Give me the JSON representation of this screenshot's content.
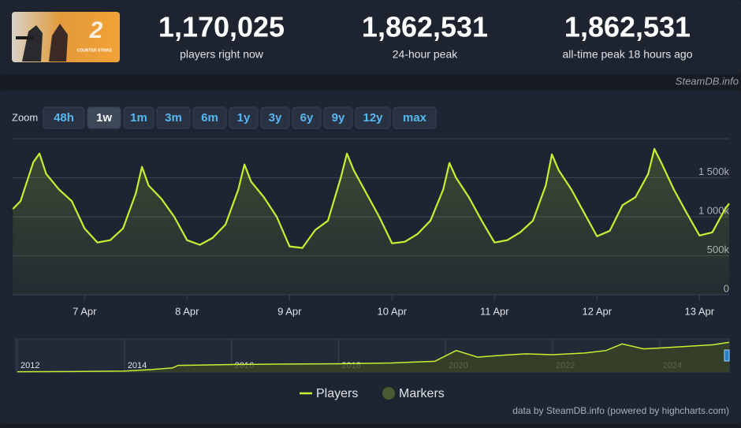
{
  "header": {
    "logo": {
      "number": "2",
      "text": "COUNTER STRIKE"
    },
    "stats": [
      {
        "value": "1,170,025",
        "label": "players right now"
      },
      {
        "value": "1,862,531",
        "label": "24-hour peak"
      },
      {
        "value": "1,862,531",
        "label": "all-time peak 18 hours ago"
      }
    ],
    "source": "SteamDB.info"
  },
  "zoom": {
    "label": "Zoom",
    "buttons": [
      "48h",
      "1w",
      "1m",
      "3m",
      "6m",
      "1y",
      "3y",
      "6y",
      "9y",
      "12y",
      "max"
    ],
    "active": "1w"
  },
  "chart_data": [
    {
      "type": "line",
      "x": [
        6.3,
        6.375,
        6.5,
        6.56,
        6.625,
        6.75,
        6.875,
        7.0,
        7.125,
        7.25,
        7.375,
        7.5,
        7.56,
        7.625,
        7.75,
        7.875,
        8.0,
        8.125,
        8.25,
        8.375,
        8.5,
        8.56,
        8.625,
        8.75,
        8.875,
        9.0,
        9.125,
        9.25,
        9.375,
        9.5,
        9.56,
        9.625,
        9.75,
        9.875,
        10.0,
        10.125,
        10.25,
        10.375,
        10.5,
        10.56,
        10.625,
        10.75,
        10.875,
        11.0,
        11.125,
        11.25,
        11.375,
        11.5,
        11.56,
        11.625,
        11.75,
        11.875,
        12.0,
        12.125,
        12.25,
        12.375,
        12.5,
        12.56,
        12.625,
        12.75,
        12.875,
        13.0,
        13.125,
        13.25,
        13.29
      ],
      "series": [
        {
          "name": "Players",
          "color": "#c8ef34",
          "values": [
            1100000,
            1200000,
            1700000,
            1810000,
            1550000,
            1350000,
            1200000,
            850000,
            670000,
            700000,
            850000,
            1300000,
            1640000,
            1400000,
            1230000,
            1000000,
            700000,
            640000,
            730000,
            900000,
            1350000,
            1670000,
            1450000,
            1250000,
            1000000,
            620000,
            600000,
            830000,
            950000,
            1500000,
            1810000,
            1600000,
            1300000,
            1000000,
            660000,
            680000,
            780000,
            950000,
            1350000,
            1690000,
            1500000,
            1250000,
            950000,
            670000,
            700000,
            800000,
            950000,
            1400000,
            1800000,
            1600000,
            1350000,
            1050000,
            750000,
            820000,
            1150000,
            1250000,
            1550000,
            1870000,
            1700000,
            1350000,
            1050000,
            760000,
            800000,
            1100000,
            1170000
          ]
        },
        {
          "name": "Markers",
          "color": "#4b5a30"
        }
      ],
      "xlim": [
        6.29,
        13.29
      ],
      "xticks": [
        {
          "value": 7,
          "label": "7 Apr"
        },
        {
          "value": 8,
          "label": "8 Apr"
        },
        {
          "value": 9,
          "label": "9 Apr"
        },
        {
          "value": 10,
          "label": "10 Apr"
        },
        {
          "value": 11,
          "label": "11 Apr"
        },
        {
          "value": 12,
          "label": "12 Apr"
        },
        {
          "value": 13,
          "label": "13 Apr"
        }
      ],
      "ylim": [
        0,
        2000000
      ],
      "yticks": [
        0,
        {
          "value": 500000,
          "label": "500k"
        },
        {
          "value": 1000000,
          "label": "1 000k"
        },
        {
          "value": 1500000,
          "label": "1 500k"
        }
      ],
      "grid": true,
      "legend": "bottom"
    },
    {
      "type": "navigator",
      "x": [
        2012,
        2013,
        2014,
        2014.5,
        2014.9,
        2015,
        2016,
        2017,
        2018,
        2019,
        2019.8,
        2020.2,
        2020.6,
        2021,
        2021.5,
        2022,
        2022.6,
        2023,
        2023.3,
        2023.7,
        2024,
        2024.5,
        2025,
        2025.3
      ],
      "values": [
        20000,
        30000,
        60000,
        150000,
        250000,
        400000,
        450000,
        480000,
        500000,
        550000,
        650000,
        1300000,
        900000,
        1000000,
        1100000,
        1050000,
        1150000,
        1300000,
        1700000,
        1400000,
        1450000,
        1550000,
        1650000,
        1800000
      ],
      "color": "#c8ef34",
      "xlim": [
        2011.97,
        2025.3
      ],
      "xticks": [
        2012,
        2014,
        2016,
        2018,
        2020,
        2022,
        2024
      ],
      "ylim": [
        0,
        2000000
      ]
    }
  ],
  "credits": "data by SteamDB.info (powered by highcharts.com)"
}
